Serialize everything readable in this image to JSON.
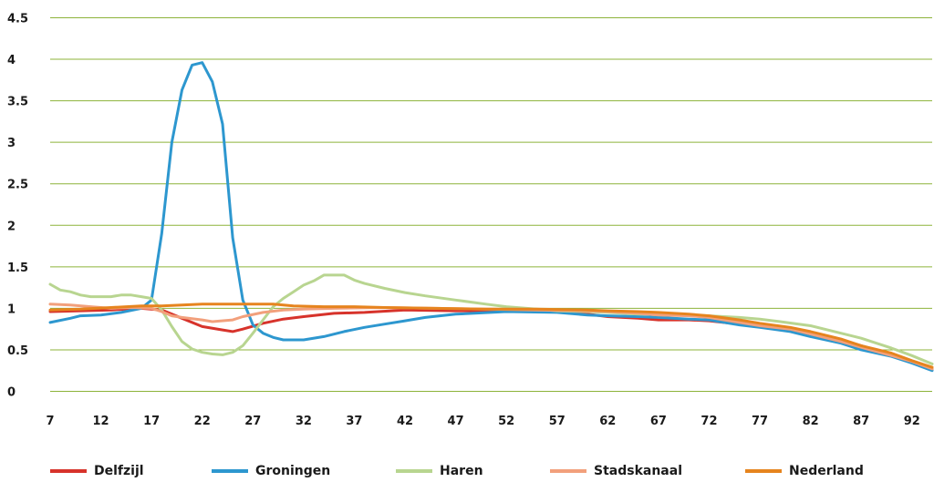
{
  "chart_data": {
    "type": "line",
    "title": "",
    "xlabel": "",
    "ylabel": "",
    "ylim": [
      0,
      4.5
    ],
    "xlim": [
      7,
      94
    ],
    "grid": true,
    "legend_position": "bottom",
    "y_ticks": [
      "0",
      "0.5",
      "1",
      "1.5",
      "2",
      "2.5",
      "3",
      "3.5",
      "4",
      "4.5"
    ],
    "x_ticks": [
      "7",
      "12",
      "17",
      "22",
      "27",
      "32",
      "37",
      "42",
      "47",
      "52",
      "57",
      "62",
      "67",
      "72",
      "77",
      "82",
      "87",
      "92"
    ],
    "colors": {
      "grid": "#8db33a",
      "axis": "#8db33a"
    },
    "series": [
      {
        "name": "Delfzijl",
        "color": "#d7332b",
        "points": [
          [
            7,
            0.96
          ],
          [
            10,
            0.97
          ],
          [
            13,
            0.98
          ],
          [
            16,
            1.0
          ],
          [
            18,
            0.98
          ],
          [
            20,
            0.88
          ],
          [
            22,
            0.78
          ],
          [
            24,
            0.74
          ],
          [
            25,
            0.72
          ],
          [
            26,
            0.75
          ],
          [
            28,
            0.82
          ],
          [
            30,
            0.87
          ],
          [
            32,
            0.9
          ],
          [
            35,
            0.94
          ],
          [
            38,
            0.95
          ],
          [
            42,
            0.98
          ],
          [
            47,
            0.97
          ],
          [
            52,
            0.97
          ],
          [
            57,
            0.96
          ],
          [
            60,
            0.93
          ],
          [
            62,
            0.9
          ],
          [
            65,
            0.88
          ],
          [
            67,
            0.86
          ],
          [
            70,
            0.86
          ],
          [
            72,
            0.85
          ],
          [
            75,
            0.81
          ],
          [
            77,
            0.78
          ],
          [
            80,
            0.74
          ],
          [
            82,
            0.7
          ],
          [
            85,
            0.62
          ],
          [
            87,
            0.55
          ],
          [
            90,
            0.44
          ],
          [
            92,
            0.36
          ],
          [
            94,
            0.27
          ]
        ]
      },
      {
        "name": "Groningen",
        "color": "#2d97cf",
        "points": [
          [
            7,
            0.83
          ],
          [
            9,
            0.88
          ],
          [
            10,
            0.91
          ],
          [
            12,
            0.92
          ],
          [
            14,
            0.95
          ],
          [
            16,
            1.0
          ],
          [
            17,
            1.1
          ],
          [
            18,
            1.9
          ],
          [
            19,
            3.0
          ],
          [
            20,
            3.63
          ],
          [
            21,
            3.93
          ],
          [
            22,
            3.96
          ],
          [
            23,
            3.73
          ],
          [
            24,
            3.22
          ],
          [
            25,
            1.85
          ],
          [
            26,
            1.1
          ],
          [
            27,
            0.8
          ],
          [
            28,
            0.7
          ],
          [
            29,
            0.65
          ],
          [
            30,
            0.62
          ],
          [
            32,
            0.62
          ],
          [
            34,
            0.66
          ],
          [
            36,
            0.72
          ],
          [
            38,
            0.77
          ],
          [
            40,
            0.81
          ],
          [
            42,
            0.85
          ],
          [
            44,
            0.89
          ],
          [
            47,
            0.93
          ],
          [
            52,
            0.96
          ],
          [
            57,
            0.95
          ],
          [
            60,
            0.92
          ],
          [
            62,
            0.91
          ],
          [
            65,
            0.9
          ],
          [
            67,
            0.89
          ],
          [
            70,
            0.87
          ],
          [
            72,
            0.86
          ],
          [
            75,
            0.8
          ],
          [
            77,
            0.77
          ],
          [
            80,
            0.72
          ],
          [
            82,
            0.66
          ],
          [
            85,
            0.58
          ],
          [
            87,
            0.5
          ],
          [
            90,
            0.42
          ],
          [
            92,
            0.34
          ],
          [
            94,
            0.25
          ]
        ]
      },
      {
        "name": "Haren",
        "color": "#b8d590",
        "points": [
          [
            7,
            1.29
          ],
          [
            8,
            1.22
          ],
          [
            9,
            1.2
          ],
          [
            10,
            1.16
          ],
          [
            11,
            1.14
          ],
          [
            13,
            1.14
          ],
          [
            14,
            1.16
          ],
          [
            15,
            1.16
          ],
          [
            16,
            1.14
          ],
          [
            17,
            1.12
          ],
          [
            18,
            0.98
          ],
          [
            19,
            0.78
          ],
          [
            20,
            0.6
          ],
          [
            21,
            0.51
          ],
          [
            22,
            0.47
          ],
          [
            23,
            0.45
          ],
          [
            24,
            0.44
          ],
          [
            25,
            0.47
          ],
          [
            26,
            0.55
          ],
          [
            27,
            0.7
          ],
          [
            28,
            0.86
          ],
          [
            29,
            1.02
          ],
          [
            30,
            1.12
          ],
          [
            31,
            1.2
          ],
          [
            32,
            1.28
          ],
          [
            33,
            1.33
          ],
          [
            34,
            1.4
          ],
          [
            35,
            1.4
          ],
          [
            36,
            1.4
          ],
          [
            37,
            1.34
          ],
          [
            38,
            1.3
          ],
          [
            40,
            1.24
          ],
          [
            42,
            1.19
          ],
          [
            44,
            1.15
          ],
          [
            47,
            1.1
          ],
          [
            50,
            1.05
          ],
          [
            52,
            1.02
          ],
          [
            55,
            0.99
          ],
          [
            57,
            0.97
          ],
          [
            60,
            0.96
          ],
          [
            62,
            0.95
          ],
          [
            65,
            0.93
          ],
          [
            67,
            0.93
          ],
          [
            70,
            0.92
          ],
          [
            72,
            0.91
          ],
          [
            75,
            0.89
          ],
          [
            77,
            0.87
          ],
          [
            79,
            0.84
          ],
          [
            82,
            0.79
          ],
          [
            85,
            0.7
          ],
          [
            87,
            0.64
          ],
          [
            90,
            0.52
          ],
          [
            92,
            0.43
          ],
          [
            94,
            0.33
          ]
        ]
      },
      {
        "name": "Stadskanaal",
        "color": "#f2a07c",
        "points": [
          [
            7,
            1.05
          ],
          [
            9,
            1.04
          ],
          [
            11,
            1.02
          ],
          [
            13,
            1.0
          ],
          [
            15,
            1.01
          ],
          [
            17,
            1.0
          ],
          [
            18,
            0.96
          ],
          [
            19,
            0.91
          ],
          [
            20,
            0.89
          ],
          [
            22,
            0.86
          ],
          [
            23,
            0.84
          ],
          [
            25,
            0.86
          ],
          [
            26,
            0.9
          ],
          [
            28,
            0.95
          ],
          [
            30,
            0.98
          ],
          [
            32,
            0.99
          ],
          [
            35,
            1.0
          ],
          [
            40,
            1.01
          ],
          [
            45,
            1.0
          ],
          [
            50,
            0.99
          ],
          [
            55,
            0.98
          ],
          [
            60,
            0.97
          ],
          [
            62,
            0.96
          ],
          [
            65,
            0.94
          ],
          [
            67,
            0.92
          ],
          [
            70,
            0.91
          ],
          [
            72,
            0.89
          ],
          [
            75,
            0.83
          ],
          [
            77,
            0.79
          ],
          [
            80,
            0.75
          ],
          [
            82,
            0.69
          ],
          [
            85,
            0.6
          ],
          [
            87,
            0.53
          ],
          [
            90,
            0.43
          ],
          [
            92,
            0.36
          ],
          [
            94,
            0.27
          ]
        ]
      },
      {
        "name": "Nederland",
        "color": "#e6841e",
        "points": [
          [
            7,
            0.98
          ],
          [
            10,
            0.99
          ],
          [
            13,
            1.01
          ],
          [
            16,
            1.03
          ],
          [
            18,
            1.03
          ],
          [
            20,
            1.04
          ],
          [
            22,
            1.05
          ],
          [
            25,
            1.05
          ],
          [
            27,
            1.05
          ],
          [
            29,
            1.05
          ],
          [
            31,
            1.03
          ],
          [
            34,
            1.02
          ],
          [
            37,
            1.02
          ],
          [
            40,
            1.01
          ],
          [
            45,
            1.0
          ],
          [
            50,
            0.99
          ],
          [
            55,
            0.99
          ],
          [
            60,
            0.98
          ],
          [
            62,
            0.97
          ],
          [
            65,
            0.96
          ],
          [
            67,
            0.95
          ],
          [
            70,
            0.93
          ],
          [
            72,
            0.91
          ],
          [
            75,
            0.86
          ],
          [
            77,
            0.82
          ],
          [
            80,
            0.77
          ],
          [
            82,
            0.72
          ],
          [
            85,
            0.63
          ],
          [
            87,
            0.55
          ],
          [
            90,
            0.46
          ],
          [
            92,
            0.37
          ],
          [
            94,
            0.29
          ]
        ]
      }
    ]
  }
}
